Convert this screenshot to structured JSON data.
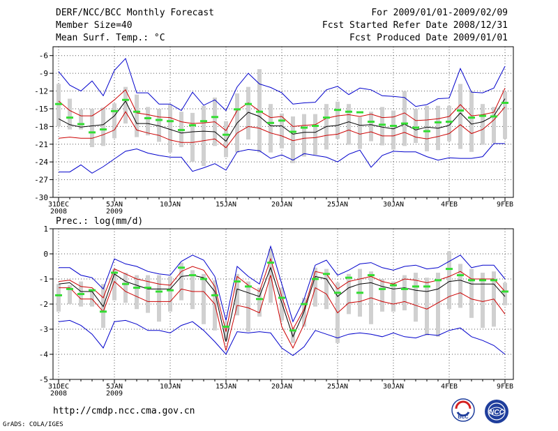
{
  "header": {
    "title": "DERF/NCC/BCC Monthly Forecast",
    "member_size": "Member Size=40",
    "var1_label": "Mean Surf. Temp.: °C",
    "forecast_period": "For 2009/01/01-2009/02/09",
    "fcst_started": "Fcst Started Refer Date 2008/12/31",
    "fcst_produced": "Fcst Produced Date 2009/01/01"
  },
  "footer": {
    "url": "http://cmdp.ncc.cma.gov.cn",
    "grads": "GrADS: COLA/IGES",
    "logo_bcc": "BCC",
    "logo_ncc": "NCC"
  },
  "colors": {
    "spread": "#0000cc",
    "band": "#cc0000",
    "mean": "#000000",
    "observed": "#33dd33",
    "box": "#d0d0d0",
    "grid": "#555555"
  },
  "chart_data": [
    {
      "type": "line",
      "title": "Mean Surf. Temp.: °C",
      "x_day_index": [
        0,
        1,
        2,
        3,
        4,
        5,
        6,
        7,
        8,
        9,
        10,
        11,
        12,
        13,
        14,
        15,
        16,
        17,
        18,
        19,
        20,
        21,
        22,
        23,
        24,
        25,
        26,
        27,
        28,
        29,
        30,
        31,
        32,
        33,
        34,
        35,
        36,
        37,
        38,
        39,
        40
      ],
      "x_tick_labels": [
        {
          "day": 0,
          "label": "31DEC",
          "sub": "2008"
        },
        {
          "day": 5,
          "label": "5JAN",
          "sub": "2009"
        },
        {
          "day": 10,
          "label": "10JAN",
          "sub": ""
        },
        {
          "day": 15,
          "label": "15JAN",
          "sub": ""
        },
        {
          "day": 20,
          "label": "20JAN",
          "sub": ""
        },
        {
          "day": 25,
          "label": "25JAN",
          "sub": ""
        },
        {
          "day": 30,
          "label": "30JAN",
          "sub": ""
        },
        {
          "day": 35,
          "label": "4FEB",
          "sub": ""
        },
        {
          "day": 40,
          "label": "9FEB",
          "sub": ""
        }
      ],
      "ylim": [
        -30,
        -4.5
      ],
      "y_ticks": [
        -30,
        -27,
        -24,
        -21,
        -18,
        -15,
        -12,
        -9,
        -6
      ],
      "series": [
        {
          "name": "max",
          "values": [
            -8.7,
            -11,
            -12,
            -10.3,
            -12.8,
            -8.5,
            -6.5,
            -12.3,
            -12.3,
            -14.2,
            -14.2,
            -15.3,
            -12.2,
            -14.4,
            -13.5,
            -15.3,
            -11.3,
            -9,
            -10.8,
            -11.4,
            -12.3,
            -14.2,
            -14,
            -13.9,
            -11.8,
            -11.2,
            -12.6,
            -11.5,
            -11.8,
            -12.8,
            -12.9,
            -13.1,
            -14.6,
            -14.3,
            -13.3,
            -13.2,
            -8.2,
            -12.2,
            -12.3,
            -11.5,
            -7.8
          ]
        },
        {
          "name": "upper",
          "values": [
            -13.7,
            -15.3,
            -16.2,
            -16.2,
            -15,
            -13.5,
            -11.8,
            -15.7,
            -16,
            -16.4,
            -16.5,
            -17.2,
            -17.5,
            -17.4,
            -17.2,
            -18.7,
            -15.3,
            -14,
            -15.4,
            -16.5,
            -16.3,
            -18,
            -17.8,
            -17.7,
            -16.6,
            -16.2,
            -16,
            -16.3,
            -15.9,
            -16.5,
            -16.4,
            -15.7,
            -17,
            -16.9,
            -16.7,
            -16.3,
            -14.3,
            -16.2,
            -16,
            -15.6,
            -11.5
          ]
        },
        {
          "name": "mean",
          "values": [
            -16.7,
            -17.7,
            -18.1,
            -17.9,
            -17.7,
            -16.2,
            -13.7,
            -17.5,
            -17.5,
            -17.9,
            -18.5,
            -19.1,
            -18.9,
            -18.8,
            -18.9,
            -20.5,
            -17.4,
            -15.6,
            -16.3,
            -17.9,
            -17.9,
            -19.3,
            -19,
            -19,
            -18,
            -17.8,
            -17.2,
            -17.8,
            -17.7,
            -18.1,
            -18.4,
            -17.6,
            -18.6,
            -18.1,
            -18.3,
            -17.8,
            -15.7,
            -17.6,
            -17.2,
            -16.2,
            -13.3
          ]
        },
        {
          "name": "lower",
          "values": [
            -20,
            -19.8,
            -20,
            -20,
            -19.4,
            -18.6,
            -15.5,
            -18.6,
            -19.1,
            -19.5,
            -20.3,
            -20.7,
            -20.7,
            -20.4,
            -20.1,
            -21.6,
            -19.1,
            -18,
            -18.3,
            -19.1,
            -19.6,
            -20.4,
            -20,
            -19.9,
            -19.5,
            -19.3,
            -18.6,
            -19.3,
            -18.9,
            -19.6,
            -19.6,
            -19,
            -19.8,
            -20.1,
            -19.7,
            -19.2,
            -17.7,
            -19.2,
            -18.5,
            -16.9,
            -14.7
          ]
        },
        {
          "name": "min",
          "values": [
            -25.7,
            -25.7,
            -24.5,
            -25.9,
            -24.8,
            -23.5,
            -22.2,
            -21.8,
            -22.5,
            -22.9,
            -23.2,
            -23.2,
            -25.6,
            -25,
            -24.3,
            -25.4,
            -22.3,
            -21.9,
            -22.1,
            -23.4,
            -22.8,
            -23.7,
            -22.6,
            -22.9,
            -23.2,
            -24,
            -22.7,
            -22,
            -24.9,
            -22.9,
            -22.2,
            -22.3,
            -22.3,
            -23.1,
            -23.7,
            -23.3,
            -23.4,
            -23.4,
            -23.1,
            -20.9,
            -20.9
          ]
        },
        {
          "name": "box_top",
          "values": [
            -10.8,
            -13.3,
            -15.1,
            -15,
            -14.8,
            -14.1,
            -11.3,
            -12.6,
            -14.7,
            -15,
            -14.3,
            -15.5,
            -15.7,
            -14.5,
            -13.1,
            -17.1,
            -12.4,
            -11.3,
            -8.3,
            -14.2,
            -15.8,
            -16.3,
            -15.9,
            -15.9,
            -14.2,
            -13.8,
            -14.2,
            -16.4,
            -15.5,
            -14.7,
            -15.3,
            -12,
            -15,
            -14.5,
            -14.5,
            -14.5,
            -10.8,
            -12,
            -14.2,
            -14.7,
            -12.1
          ]
        },
        {
          "name": "box_bottom",
          "values": [
            -18,
            -18.5,
            -18.5,
            -21.5,
            -21.3,
            -20,
            -17.5,
            -19.8,
            -19.5,
            -20.6,
            -22.4,
            -21.5,
            -24,
            -24.7,
            -21.3,
            -23.2,
            -22.4,
            -20.2,
            -22.4,
            -22.4,
            -21.7,
            -24.2,
            -23.1,
            -22.8,
            -21.9,
            -20.1,
            -21.1,
            -21.8,
            -20.5,
            -21.2,
            -21.9,
            -21.3,
            -20.8,
            -22.2,
            -22,
            -20.5,
            -21.8,
            -22.3,
            -21.1,
            -20.8,
            -20.1
          ]
        },
        {
          "name": "observed",
          "values": [
            -14.2,
            -16.5,
            -17.6,
            -19,
            -18.5,
            -15.4,
            -13.5,
            -15.5,
            -16.6,
            -16.9,
            -17.1,
            -18.6,
            -17.8,
            -17.1,
            -16.4,
            -19.4,
            -15.1,
            -14.2,
            -15.5,
            -17.4,
            -17,
            -18.9,
            -18.2,
            -17.9,
            -16.5,
            -15.2,
            -15.5,
            -15.6,
            -17.2,
            -17.7,
            -17.9,
            -17.5,
            -18.2,
            -18.8,
            -17.3,
            -17.2,
            -15.3,
            -16.5,
            -16.2,
            -16.3,
            -14
          ]
        }
      ]
    },
    {
      "type": "line",
      "title": "Prec.: log(mm/d)",
      "x_day_index": [
        0,
        1,
        2,
        3,
        4,
        5,
        6,
        7,
        8,
        9,
        10,
        11,
        12,
        13,
        14,
        15,
        16,
        17,
        18,
        19,
        20,
        21,
        22,
        23,
        24,
        25,
        26,
        27,
        28,
        29,
        30,
        31,
        32,
        33,
        34,
        35,
        36,
        37,
        38,
        39,
        40
      ],
      "x_tick_labels": [
        {
          "day": 0,
          "label": "31DEC",
          "sub": "2008"
        },
        {
          "day": 5,
          "label": "5JAN",
          "sub": "2009"
        },
        {
          "day": 10,
          "label": "10JAN",
          "sub": ""
        },
        {
          "day": 15,
          "label": "15JAN",
          "sub": ""
        },
        {
          "day": 20,
          "label": "20JAN",
          "sub": ""
        },
        {
          "day": 25,
          "label": "25JAN",
          "sub": ""
        },
        {
          "day": 30,
          "label": "30JAN",
          "sub": ""
        },
        {
          "day": 35,
          "label": "4FEB",
          "sub": ""
        },
        {
          "day": 40,
          "label": "9FEB",
          "sub": ""
        }
      ],
      "ylim": [
        -5,
        1
      ],
      "y_ticks": [
        -5,
        -4,
        -3,
        -2,
        -1,
        0,
        1
      ],
      "series": [
        {
          "name": "max",
          "values": [
            -0.55,
            -0.55,
            -0.85,
            -0.95,
            -1.4,
            -0.2,
            -0.4,
            -0.5,
            -0.7,
            -0.8,
            -0.85,
            -0.3,
            -0.05,
            -0.25,
            -0.9,
            -2.65,
            -0.5,
            -0.9,
            -1.2,
            0.3,
            -1.2,
            -2.7,
            -1.8,
            -0.45,
            -0.25,
            -0.85,
            -0.65,
            -0.4,
            -0.35,
            -0.55,
            -0.65,
            -0.5,
            -0.45,
            -0.6,
            -0.55,
            -0.3,
            -0.05,
            -0.55,
            -0.45,
            -0.45,
            -1
          ]
        },
        {
          "name": "upper",
          "values": [
            -1.1,
            -1.05,
            -1.3,
            -1.35,
            -1.75,
            -0.6,
            -0.8,
            -1,
            -1.1,
            -1.2,
            -1.25,
            -0.7,
            -0.5,
            -0.65,
            -1.3,
            -3.1,
            -0.9,
            -1.25,
            -1.5,
            -0.2,
            -1.7,
            -3,
            -2.2,
            -0.7,
            -0.8,
            -1.4,
            -1.1,
            -1,
            -0.9,
            -1.1,
            -1.2,
            -1,
            -1.05,
            -1.15,
            -1.05,
            -0.9,
            -0.7,
            -1,
            -1,
            -1,
            -1.5
          ]
        },
        {
          "name": "mean",
          "values": [
            -1.2,
            -1.15,
            -1.5,
            -1.5,
            -2.1,
            -0.8,
            -1.1,
            -1.25,
            -1.4,
            -1.4,
            -1.4,
            -0.9,
            -0.85,
            -0.95,
            -1.5,
            -3.5,
            -1.4,
            -1.55,
            -1.7,
            -0.55,
            -1.95,
            -3.3,
            -2.3,
            -0.9,
            -1,
            -1.7,
            -1.35,
            -1.2,
            -1.15,
            -1.3,
            -1.4,
            -1.35,
            -1.45,
            -1.5,
            -1.4,
            -1.1,
            -1.05,
            -1.2,
            -1.2,
            -1.2,
            -1.7
          ]
        },
        {
          "name": "lower",
          "values": [
            -1.35,
            -1.35,
            -1.8,
            -1.8,
            -2.3,
            -1.1,
            -1.5,
            -1.7,
            -1.9,
            -1.9,
            -1.9,
            -1.4,
            -1.5,
            -1.5,
            -2,
            -3.85,
            -2.05,
            -2.15,
            -2.35,
            -0.85,
            -2.9,
            -3.75,
            -2.8,
            -1.35,
            -1.6,
            -2.35,
            -1.95,
            -1.9,
            -1.75,
            -1.9,
            -2,
            -1.9,
            -2.05,
            -2.2,
            -1.95,
            -1.7,
            -1.55,
            -1.8,
            -1.9,
            -1.8,
            -2.4
          ]
        },
        {
          "name": "min",
          "values": [
            -2.7,
            -2.65,
            -2.85,
            -3.2,
            -3.75,
            -2.7,
            -2.65,
            -2.8,
            -3.05,
            -3.05,
            -3.15,
            -2.85,
            -2.7,
            -3.05,
            -3.5,
            -4,
            -3.1,
            -3.15,
            -3.1,
            -3.15,
            -3.75,
            -4.05,
            -3.7,
            -3.05,
            -3.2,
            -3.35,
            -3.2,
            -3.15,
            -3.2,
            -3.3,
            -3.15,
            -3.3,
            -3.35,
            -3.2,
            -3.25,
            -3.05,
            -2.95,
            -3.3,
            -3.45,
            -3.65,
            -4
          ]
        },
        {
          "name": "box_top",
          "values": [
            -1.2,
            -1.25,
            -1.1,
            -1.4,
            -1.2,
            -0.6,
            -0.75,
            -0.85,
            -0.85,
            -0.85,
            -0.9,
            -0.35,
            -0.65,
            -0.8,
            -1.05,
            -2.7,
            -0.8,
            -1.1,
            -1.35,
            0.2,
            -1.35,
            -2.95,
            -1.75,
            -0.55,
            -0.6,
            -1.15,
            -0.8,
            -0.6,
            -0.7,
            -1,
            -1.1,
            -0.85,
            -0.75,
            -0.95,
            -0.75,
            0.1,
            -0.4,
            -0.6,
            -0.75,
            -0.7,
            -1.15
          ]
        },
        {
          "name": "box_bottom",
          "values": [
            -2.3,
            -2,
            -2.1,
            -2.1,
            -2.95,
            -1.85,
            -1.95,
            -2.2,
            -2.35,
            -2.7,
            -2.3,
            -1.85,
            -2.2,
            -2.8,
            -3.05,
            -3.45,
            -2.45,
            -3.1,
            -2.5,
            -1.95,
            -2.65,
            -3.55,
            -2.9,
            -2.1,
            -2.2,
            -3.55,
            -2.4,
            -2.5,
            -2.8,
            -2.3,
            -2.3,
            -2.25,
            -2.7,
            -3.25,
            -3.3,
            -2.2,
            -2.15,
            -2.55,
            -2.95,
            -2.9,
            -2.05
          ]
        },
        {
          "name": "observed",
          "values": [
            -1.65,
            -1.4,
            -1.6,
            -1.45,
            -2.3,
            -0.75,
            -1.2,
            -1.35,
            -1.35,
            -1.5,
            -1.45,
            -0.55,
            -0.85,
            -1,
            -1.65,
            -2.9,
            -1.1,
            -1.3,
            -1.8,
            -0.35,
            -1.75,
            -3.05,
            -2,
            -1,
            -0.8,
            -1.55,
            -0.95,
            -1.55,
            -0.85,
            -1.4,
            -1.25,
            -1.4,
            -1.3,
            -1.3,
            -1.05,
            -0.6,
            -0.85,
            -1.05,
            -1.05,
            -1.05,
            -1.5
          ]
        }
      ]
    }
  ]
}
